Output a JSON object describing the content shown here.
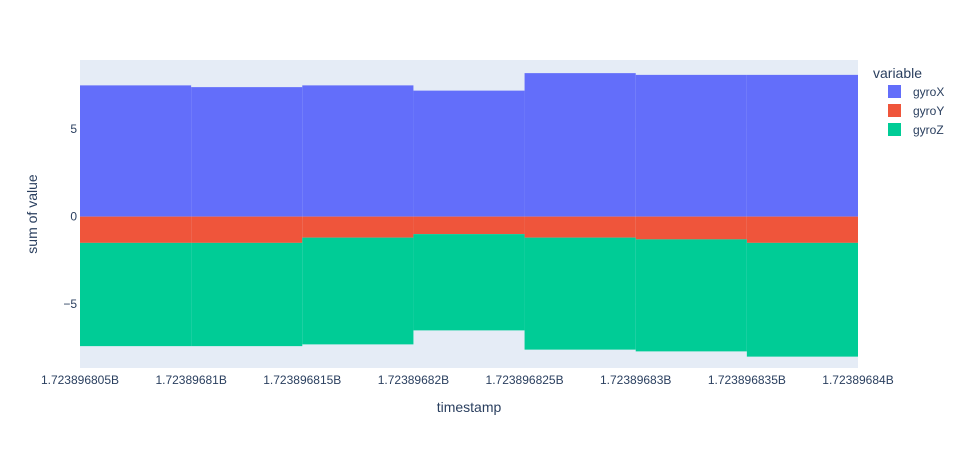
{
  "chart_data": {
    "type": "bar",
    "barmode": "relative",
    "xlabel": "timestamp",
    "ylabel": "sum of value",
    "x_tick_labels": [
      "1.723896805B",
      "1.72389681B",
      "1.723896815B",
      "1.72389682B",
      "1.723896825B",
      "1.72389683B",
      "1.723896835B",
      "1.72389684B"
    ],
    "y_ticks": [
      -5,
      0,
      5
    ],
    "y_tick_labels": [
      "−5",
      "0",
      "5"
    ],
    "ylim": [
      -8.65,
      8.95
    ],
    "grid": true,
    "legend": {
      "title": "variable",
      "position": "top-right"
    },
    "series": [
      {
        "name": "gyroX",
        "color": "#636efa",
        "values": [
          7.5,
          7.4,
          7.5,
          7.2,
          8.2,
          8.1,
          8.1
        ]
      },
      {
        "name": "gyroY",
        "color": "#ef553b",
        "values": [
          -1.5,
          -1.5,
          -1.2,
          -1.0,
          -1.2,
          -1.3,
          -1.5
        ]
      },
      {
        "name": "gyroZ",
        "color": "#00cc96",
        "values": [
          -5.9,
          -5.9,
          -6.1,
          -5.5,
          -6.4,
          -6.4,
          -6.5
        ]
      }
    ]
  }
}
